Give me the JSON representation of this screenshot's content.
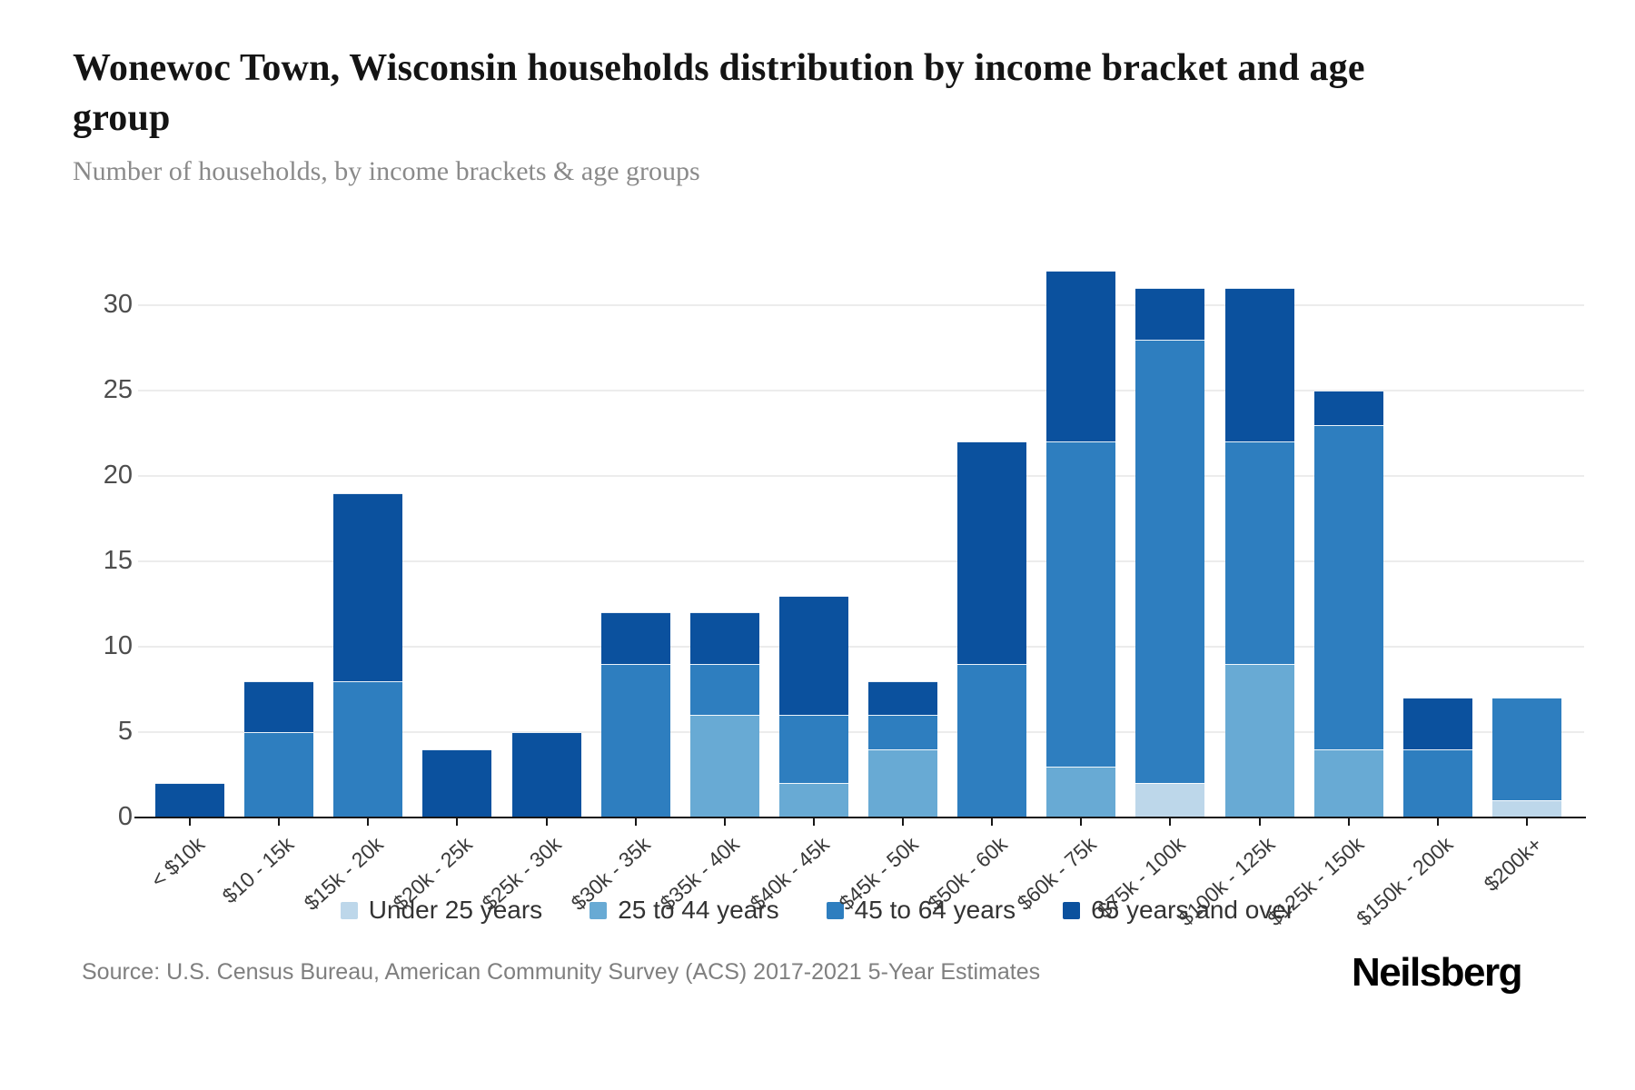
{
  "header": {
    "title": "Wonewoc Town, Wisconsin households distribution by income bracket and age group",
    "subtitle": "Number of households, by income brackets & age groups"
  },
  "footer": {
    "source": "Source: U.S. Census Bureau, American Community Survey (ACS) 2017-2021 5-Year Estimates",
    "brand": "Neilsberg"
  },
  "colors": {
    "axis": "#161616",
    "gridline": "#ececec",
    "y_label": "#4d4d4d",
    "x_label": "#3a3a3a"
  },
  "chart_data": {
    "type": "bar",
    "stacked": true,
    "grid": true,
    "legend_position": "bottom",
    "title": "Wonewoc Town, Wisconsin households distribution by income bracket and age group",
    "xlabel": "",
    "ylabel": "Number of households",
    "ylim": [
      0,
      32
    ],
    "yticks": [
      0,
      5,
      10,
      15,
      20,
      25,
      30
    ],
    "categories": [
      "< $10k",
      "$10 - 15k",
      "$15k - 20k",
      "$20k - 25k",
      "$25k - 30k",
      "$30k - 35k",
      "$35k - 40k",
      "$40k - 45k",
      "$45k - 50k",
      "$50k - 60k",
      "$60k - 75k",
      "$75k - 100k",
      "$100k - 125k",
      "$125k - 150k",
      "$150k - 200k",
      "$200k+"
    ],
    "series": [
      {
        "name": "Under 25 years",
        "color": "#bdd7ea",
        "values": [
          0,
          0,
          0,
          0,
          0,
          0,
          0,
          0,
          0,
          0,
          0,
          2,
          0,
          0,
          0,
          1
        ]
      },
      {
        "name": "25 to 44 years",
        "color": "#68aad4",
        "values": [
          0,
          0,
          0,
          0,
          0,
          0,
          6,
          2,
          4,
          0,
          3,
          0,
          9,
          4,
          0,
          0
        ]
      },
      {
        "name": "45 to 64 years",
        "color": "#2e7ebf",
        "values": [
          0,
          5,
          8,
          0,
          0,
          9,
          3,
          4,
          2,
          9,
          19,
          26,
          13,
          19,
          4,
          6
        ]
      },
      {
        "name": "65 years and over",
        "color": "#0b519e",
        "values": [
          2,
          3,
          11,
          4,
          5,
          3,
          3,
          7,
          2,
          13,
          10,
          3,
          9,
          2,
          3,
          0
        ]
      }
    ],
    "totals": [
      2,
      8,
      19,
      4,
      5,
      12,
      12,
      13,
      8,
      22,
      32,
      31,
      31,
      25,
      7,
      7
    ]
  }
}
